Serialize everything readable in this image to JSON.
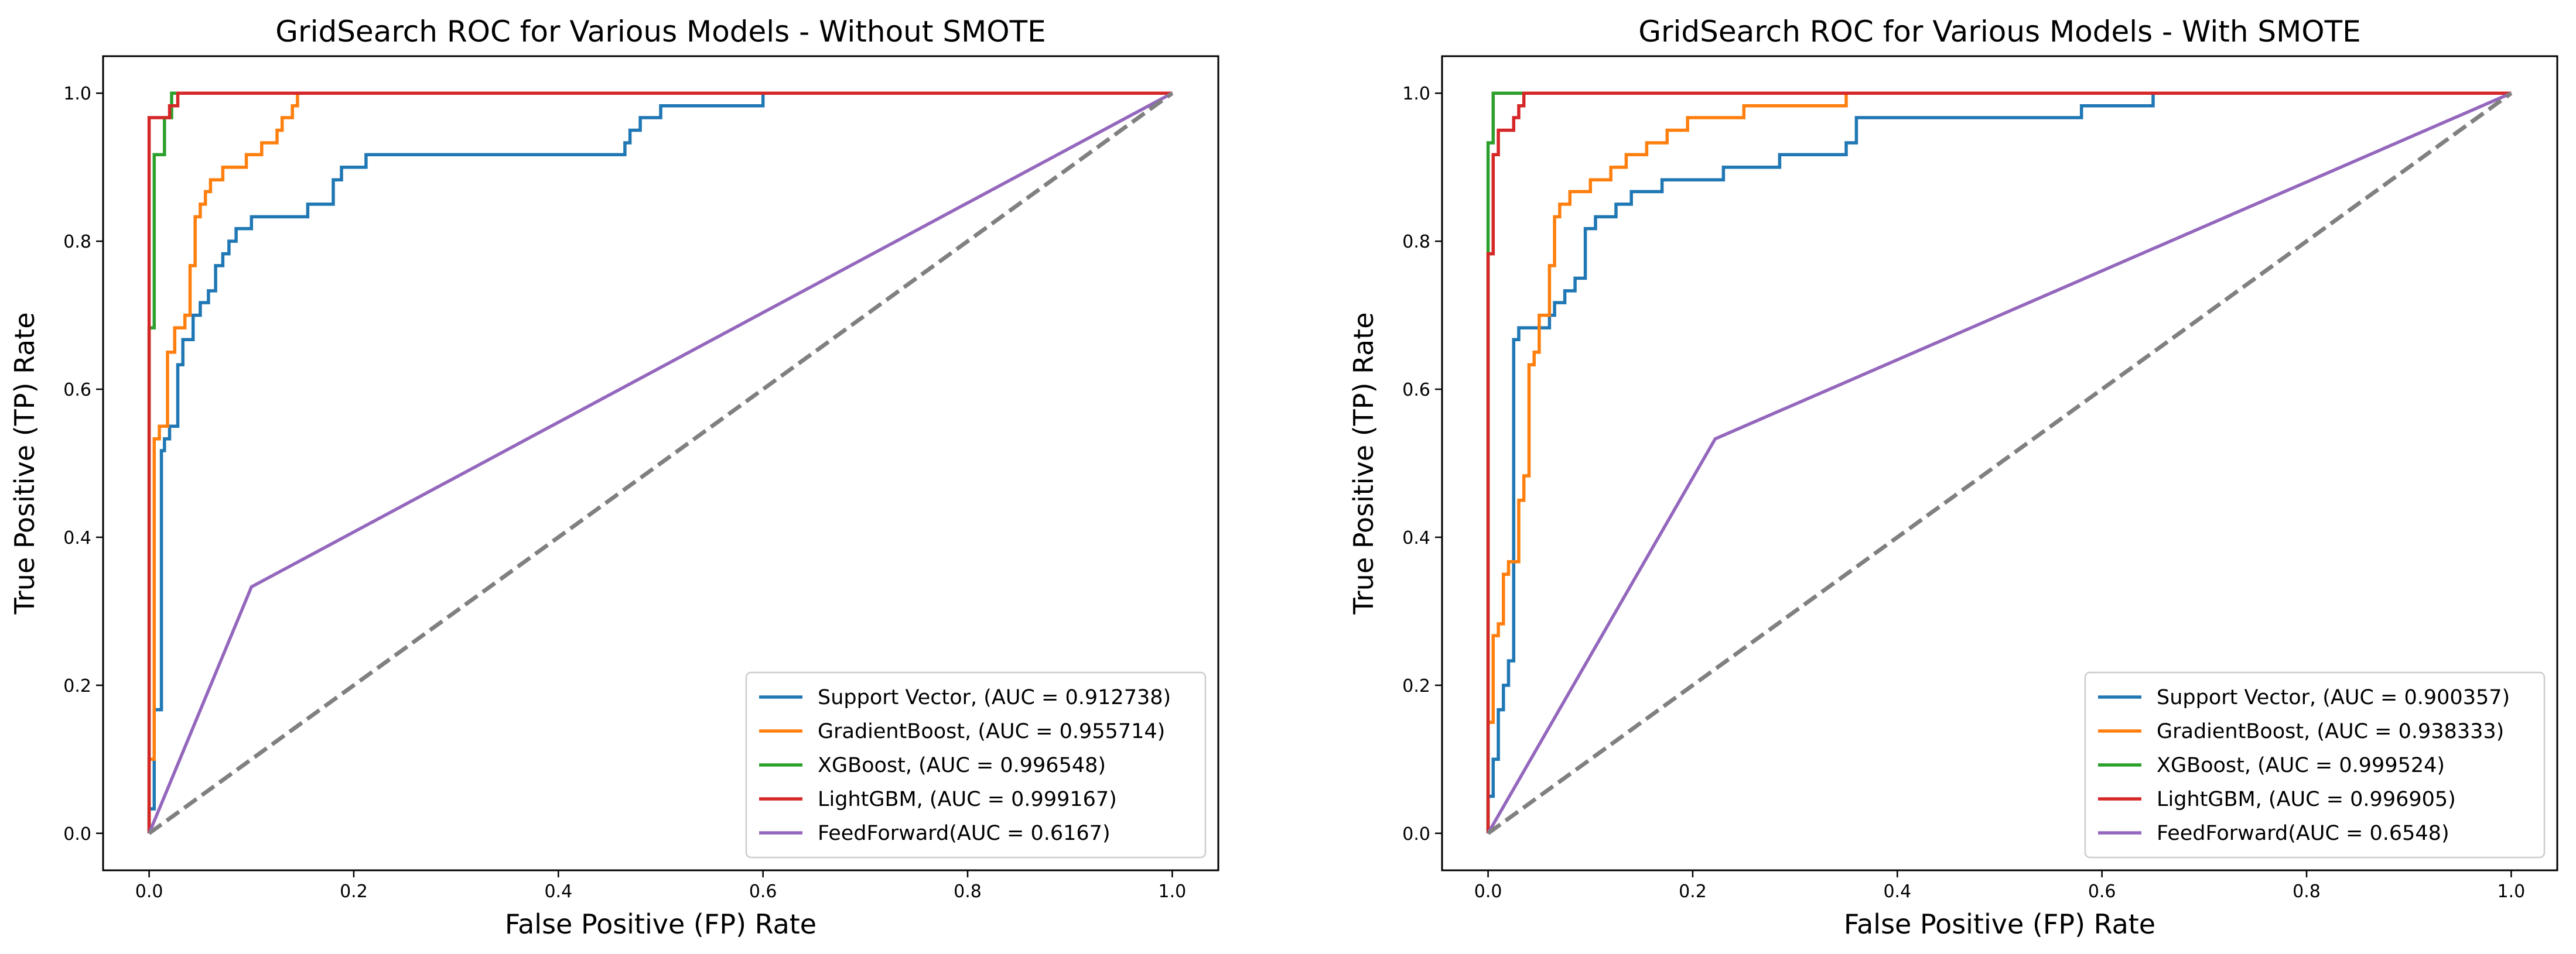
{
  "chart_data": [
    {
      "type": "line",
      "title": "GridSearch ROC for Various Models - Without SMOTE",
      "xlabel": "False Positive (FP) Rate",
      "ylabel": "True Positive (TP) Rate",
      "xlim": [
        -0.045,
        1.045
      ],
      "ylim": [
        -0.05,
        1.05
      ],
      "xticks": [
        0.0,
        0.2,
        0.4,
        0.6,
        0.8,
        1.0
      ],
      "xtick_labels": [
        "0.0",
        "0.2",
        "0.4",
        "0.6",
        "0.8",
        "1.0"
      ],
      "yticks": [
        0.0,
        0.2,
        0.4,
        0.6,
        0.8,
        1.0
      ],
      "ytick_labels": [
        "0.0",
        "0.2",
        "0.4",
        "0.6",
        "0.8",
        "1.0"
      ],
      "legend_position": "lower-right",
      "grid": false,
      "series": [
        {
          "name": "Support Vector, (AUC = 0.912738)",
          "color": "#1f77b4",
          "x": [
            0,
            0,
            0.005,
            0.005,
            0.012,
            0.012,
            0.015,
            0.015,
            0.02,
            0.02,
            0.028,
            0.028,
            0.033,
            0.033,
            0.043,
            0.043,
            0.05,
            0.05,
            0.058,
            0.058,
            0.065,
            0.065,
            0.072,
            0.072,
            0.078,
            0.078,
            0.085,
            0.085,
            0.1,
            0.1,
            0.155,
            0.155,
            0.18,
            0.18,
            0.188,
            0.188,
            0.212,
            0.212,
            0.465,
            0.465,
            0.47,
            0.47,
            0.48,
            0.48,
            0.5,
            0.5,
            0.6,
            0.6,
            0.735,
            0.735,
            1.0
          ],
          "y": [
            0,
            0.033,
            0.033,
            0.167,
            0.167,
            0.517,
            0.517,
            0.533,
            0.533,
            0.55,
            0.55,
            0.633,
            0.633,
            0.667,
            0.667,
            0.7,
            0.7,
            0.717,
            0.717,
            0.733,
            0.733,
            0.767,
            0.767,
            0.783,
            0.783,
            0.8,
            0.8,
            0.817,
            0.817,
            0.833,
            0.833,
            0.85,
            0.85,
            0.883,
            0.883,
            0.9,
            0.9,
            0.917,
            0.917,
            0.933,
            0.933,
            0.95,
            0.95,
            0.967,
            0.967,
            0.983,
            0.983,
            1.0,
            1.0,
            1.0,
            1.0
          ]
        },
        {
          "name": "GradientBoost, (AUC = 0.955714)",
          "color": "#ff7f0e",
          "x": [
            0,
            0,
            0.005,
            0.005,
            0.01,
            0.01,
            0.018,
            0.018,
            0.025,
            0.025,
            0.035,
            0.035,
            0.04,
            0.04,
            0.045,
            0.045,
            0.05,
            0.05,
            0.055,
            0.055,
            0.06,
            0.06,
            0.072,
            0.072,
            0.095,
            0.095,
            0.11,
            0.11,
            0.125,
            0.125,
            0.13,
            0.13,
            0.14,
            0.14,
            0.145,
            0.145,
            0.21,
            0.21,
            0.235,
            0.235,
            0.6,
            0.6,
            1.0
          ],
          "y": [
            0,
            0.1,
            0.1,
            0.533,
            0.533,
            0.55,
            0.55,
            0.65,
            0.65,
            0.683,
            0.683,
            0.7,
            0.7,
            0.767,
            0.767,
            0.833,
            0.833,
            0.85,
            0.85,
            0.867,
            0.867,
            0.883,
            0.883,
            0.9,
            0.9,
            0.917,
            0.917,
            0.933,
            0.933,
            0.95,
            0.95,
            0.967,
            0.967,
            0.983,
            0.983,
            1.0,
            1.0,
            1.0,
            1.0,
            1.0,
            1.0,
            1.0,
            1.0
          ]
        },
        {
          "name": "XGBoost, (AUC = 0.996548)",
          "color": "#2ca02c",
          "x": [
            0,
            0,
            0.005,
            0.005,
            0.015,
            0.015,
            0.022,
            0.022,
            1.0
          ],
          "y": [
            0,
            0.683,
            0.683,
            0.917,
            0.917,
            0.967,
            0.967,
            1.0,
            1.0
          ]
        },
        {
          "name": "LightGBM, (AUC = 0.999167)",
          "color": "#d62728",
          "x": [
            0,
            0,
            0.02,
            0.02,
            0.028,
            0.028,
            1.0
          ],
          "y": [
            0,
            0.967,
            0.967,
            0.983,
            0.983,
            1.0,
            1.0
          ]
        },
        {
          "name": "FeedForward(AUC = 0.6167)",
          "color": "#9467bd",
          "x": [
            0,
            0.1,
            1.0
          ],
          "y": [
            0,
            0.333,
            1.0
          ]
        },
        {
          "name": "",
          "color": "#808080",
          "dashed": true,
          "x": [
            0,
            1.0
          ],
          "y": [
            0,
            1.0
          ]
        }
      ]
    },
    {
      "type": "line",
      "title": "GridSearch ROC for Various Models - With SMOTE",
      "xlabel": "False Positive (FP) Rate",
      "ylabel": "True Positive (TP) Rate",
      "xlim": [
        -0.045,
        1.045
      ],
      "ylim": [
        -0.05,
        1.05
      ],
      "xticks": [
        0.0,
        0.2,
        0.4,
        0.6,
        0.8,
        1.0
      ],
      "xtick_labels": [
        "0.0",
        "0.2",
        "0.4",
        "0.6",
        "0.8",
        "1.0"
      ],
      "yticks": [
        0.0,
        0.2,
        0.4,
        0.6,
        0.8,
        1.0
      ],
      "ytick_labels": [
        "0.0",
        "0.2",
        "0.4",
        "0.6",
        "0.8",
        "1.0"
      ],
      "legend_position": "lower-right",
      "grid": false,
      "series": [
        {
          "name": "Support Vector, (AUC = 0.900357)",
          "color": "#1f77b4",
          "x": [
            0,
            0,
            0.005,
            0.005,
            0.01,
            0.01,
            0.015,
            0.015,
            0.02,
            0.02,
            0.025,
            0.025,
            0.03,
            0.03,
            0.035,
            0.035,
            0.06,
            0.06,
            0.065,
            0.065,
            0.075,
            0.075,
            0.085,
            0.085,
            0.095,
            0.095,
            0.105,
            0.105,
            0.125,
            0.125,
            0.13,
            0.13,
            0.14,
            0.14,
            0.155,
            0.155,
            0.17,
            0.17,
            0.23,
            0.23,
            0.285,
            0.285,
            0.35,
            0.35,
            0.36,
            0.36,
            0.58,
            0.58,
            0.65,
            0.65,
            0.815,
            0.815,
            1.0
          ],
          "y": [
            0,
            0.05,
            0.05,
            0.1,
            0.1,
            0.167,
            0.167,
            0.2,
            0.2,
            0.233,
            0.233,
            0.667,
            0.667,
            0.683,
            0.683,
            0.683,
            0.683,
            0.7,
            0.7,
            0.717,
            0.717,
            0.733,
            0.733,
            0.75,
            0.75,
            0.817,
            0.817,
            0.833,
            0.833,
            0.85,
            0.85,
            0.85,
            0.85,
            0.867,
            0.867,
            0.867,
            0.867,
            0.883,
            0.883,
            0.9,
            0.9,
            0.917,
            0.917,
            0.933,
            0.933,
            0.967,
            0.967,
            0.983,
            0.983,
            1.0,
            1.0,
            1.0,
            1.0
          ]
        },
        {
          "name": "GradientBoost, (AUC = 0.938333)",
          "color": "#ff7f0e",
          "x": [
            0,
            0,
            0.005,
            0.005,
            0.01,
            0.01,
            0.015,
            0.015,
            0.02,
            0.02,
            0.03,
            0.03,
            0.035,
            0.035,
            0.04,
            0.04,
            0.045,
            0.045,
            0.05,
            0.05,
            0.06,
            0.06,
            0.065,
            0.065,
            0.07,
            0.07,
            0.08,
            0.08,
            0.1,
            0.1,
            0.12,
            0.12,
            0.135,
            0.135,
            0.155,
            0.155,
            0.165,
            0.165,
            0.175,
            0.175,
            0.195,
            0.195,
            0.25,
            0.25,
            0.35,
            0.35,
            0.45,
            0.45,
            1.0
          ],
          "y": [
            0,
            0.15,
            0.15,
            0.267,
            0.267,
            0.283,
            0.283,
            0.35,
            0.35,
            0.367,
            0.367,
            0.45,
            0.45,
            0.483,
            0.483,
            0.633,
            0.633,
            0.65,
            0.65,
            0.7,
            0.7,
            0.767,
            0.767,
            0.833,
            0.833,
            0.85,
            0.85,
            0.867,
            0.867,
            0.883,
            0.883,
            0.9,
            0.9,
            0.917,
            0.917,
            0.933,
            0.933,
            0.933,
            0.933,
            0.95,
            0.95,
            0.967,
            0.967,
            0.983,
            0.983,
            1.0,
            1.0,
            1.0,
            1.0
          ]
        },
        {
          "name": "XGBoost, (AUC = 0.999524)",
          "color": "#2ca02c",
          "x": [
            0,
            0,
            0.005,
            0.005,
            0.012,
            0.012,
            1.0
          ],
          "y": [
            0,
            0.933,
            0.933,
            1.0,
            1.0,
            1.0,
            1.0
          ]
        },
        {
          "name": "LightGBM, (AUC = 0.996905)",
          "color": "#d62728",
          "x": [
            0,
            0,
            0.005,
            0.005,
            0.01,
            0.01,
            0.025,
            0.025,
            0.03,
            0.03,
            0.035,
            0.035,
            1.0
          ],
          "y": [
            0,
            0.783,
            0.783,
            0.917,
            0.917,
            0.95,
            0.95,
            0.967,
            0.967,
            0.983,
            0.983,
            1.0,
            1.0
          ]
        },
        {
          "name": "FeedForward(AUC = 0.6548)",
          "color": "#9467bd",
          "x": [
            0,
            0.222,
            1.0
          ],
          "y": [
            0,
            0.533,
            1.0
          ]
        },
        {
          "name": "",
          "color": "#808080",
          "dashed": true,
          "x": [
            0,
            1.0
          ],
          "y": [
            0,
            1.0
          ]
        }
      ]
    }
  ]
}
